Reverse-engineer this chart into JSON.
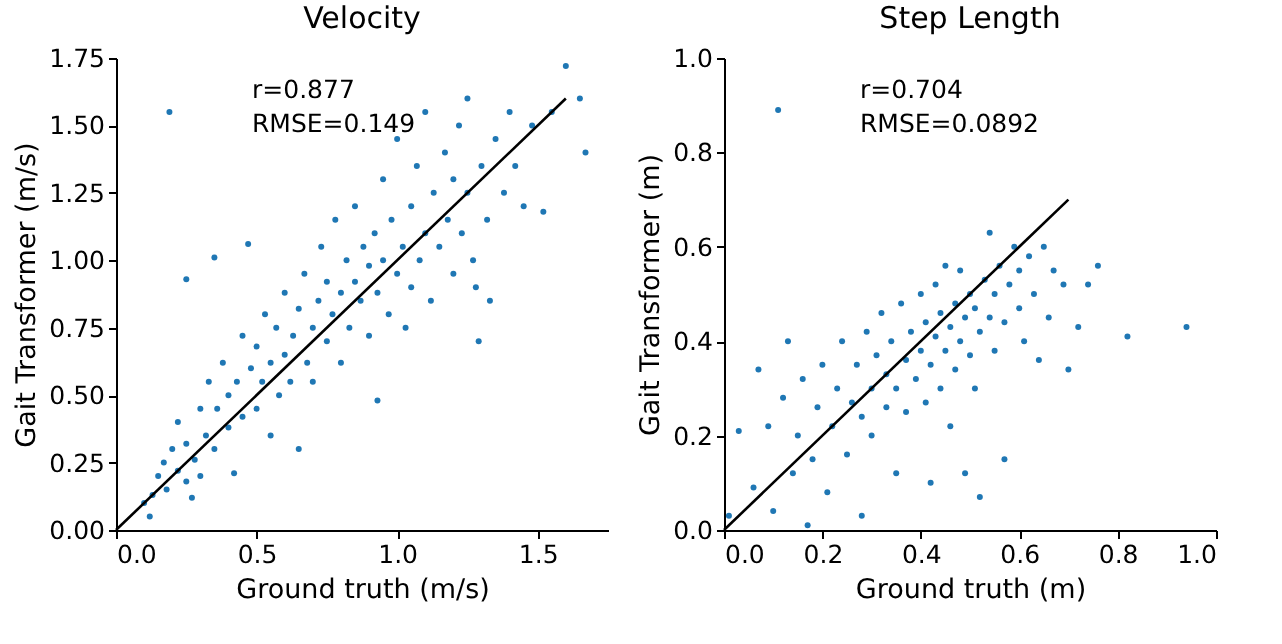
{
  "chart_data": [
    {
      "type": "scatter",
      "title": "Velocity",
      "xlabel": "Ground truth (m/s)",
      "ylabel": "Gait Transformer (m/s)",
      "xlim": [
        0,
        1.75
      ],
      "ylim": [
        0,
        1.75
      ],
      "xticks": [
        {
          "value": 0,
          "label": "0.0"
        },
        {
          "value": 0.5,
          "label": "0.5"
        },
        {
          "value": 1,
          "label": "1.0"
        },
        {
          "value": 1.5,
          "label": "1.5"
        }
      ],
      "yticks": [
        {
          "value": 0,
          "label": "0.00"
        },
        {
          "value": 0.25,
          "label": "0.25"
        },
        {
          "value": 0.5,
          "label": "0.50"
        },
        {
          "value": 0.75,
          "label": "0.75"
        },
        {
          "value": 1,
          "label": "1.00"
        },
        {
          "value": 1.25,
          "label": "1.25"
        },
        {
          "value": 1.5,
          "label": "1.50"
        },
        {
          "value": 1.75,
          "label": "1.75"
        }
      ],
      "grid": false,
      "annotations": [
        "r=0.877",
        "RMSE=0.149"
      ],
      "series": [
        {
          "marker": "circle",
          "color": "#1f77b4",
          "x": [
            0.12,
            0.1,
            0.13,
            0.15,
            0.17,
            0.18,
            0.2,
            0.22,
            0.22,
            0.25,
            0.25,
            0.27,
            0.28,
            0.3,
            0.3,
            0.32,
            0.33,
            0.35,
            0.36,
            0.38,
            0.4,
            0.4,
            0.42,
            0.43,
            0.45,
            0.45,
            0.48,
            0.5,
            0.5,
            0.52,
            0.53,
            0.55,
            0.55,
            0.57,
            0.58,
            0.6,
            0.6,
            0.62,
            0.63,
            0.65,
            0.65,
            0.67,
            0.68,
            0.7,
            0.7,
            0.72,
            0.73,
            0.75,
            0.75,
            0.77,
            0.78,
            0.8,
            0.8,
            0.82,
            0.83,
            0.85,
            0.85,
            0.87,
            0.88,
            0.9,
            0.9,
            0.92,
            0.93,
            0.95,
            0.95,
            0.97,
            0.98,
            1.0,
            1.0,
            1.02,
            1.03,
            1.05,
            1.05,
            1.07,
            1.08,
            1.1,
            1.1,
            1.12,
            1.13,
            1.15,
            1.17,
            1.18,
            1.2,
            1.2,
            1.22,
            1.23,
            1.25,
            1.25,
            1.27,
            1.28,
            1.3,
            1.32,
            1.35,
            1.38,
            1.4,
            1.42,
            1.45,
            1.48,
            1.52,
            1.55,
            0.19,
            1.6,
            1.67,
            1.65,
            1.29,
            0.93,
            0.35,
            0.25,
            0.47,
            1.33
          ],
          "values": [
            0.05,
            0.1,
            0.13,
            0.2,
            0.25,
            0.15,
            0.3,
            0.22,
            0.4,
            0.18,
            0.32,
            0.12,
            0.26,
            0.45,
            0.2,
            0.35,
            0.55,
            0.3,
            0.45,
            0.62,
            0.38,
            0.5,
            0.21,
            0.55,
            0.72,
            0.42,
            0.6,
            0.45,
            0.68,
            0.55,
            0.8,
            0.35,
            0.62,
            0.75,
            0.5,
            0.65,
            0.88,
            0.55,
            0.72,
            0.3,
            0.82,
            0.95,
            0.62,
            0.75,
            0.55,
            0.85,
            1.05,
            0.7,
            0.92,
            0.8,
            1.15,
            0.62,
            0.88,
            1.0,
            0.75,
            0.92,
            1.2,
            0.85,
            1.05,
            0.72,
            0.98,
            1.1,
            0.88,
            1.3,
            1.0,
            0.8,
            1.15,
            0.95,
            1.45,
            1.05,
            0.75,
            1.2,
            0.9,
            1.35,
            1.0,
            1.1,
            1.55,
            0.85,
            1.25,
            1.05,
            1.4,
            1.15,
            0.95,
            1.3,
            1.5,
            1.1,
            1.25,
            1.6,
            1.0,
            0.9,
            1.35,
            1.15,
            1.45,
            1.25,
            1.55,
            1.35,
            1.2,
            1.5,
            1.18,
            1.55,
            1.55,
            1.72,
            1.4,
            1.6,
            0.7,
            0.48,
            1.01,
            0.93,
            1.06,
            0.85
          ]
        },
        {
          "type": "line",
          "color": "#000000",
          "x": [
            0,
            1.6
          ],
          "values": [
            0,
            1.6
          ]
        }
      ]
    },
    {
      "type": "scatter",
      "title": "Step Length",
      "xlabel": "Ground truth (m)",
      "ylabel": "Gait Transformer (m)",
      "xlim": [
        0,
        1
      ],
      "ylim": [
        0,
        1
      ],
      "xticks": [
        {
          "value": 0,
          "label": "0.0"
        },
        0.2,
        0.4,
        0.6,
        0.8,
        {
          "value": 1,
          "label": "1.0"
        }
      ],
      "yticks": [
        {
          "value": 0,
          "label": "0.0"
        },
        0.2,
        0.4,
        0.6,
        0.8,
        {
          "value": 1,
          "label": "1.0"
        }
      ],
      "grid": false,
      "annotations": [
        "r=0.704",
        "RMSE=0.0892"
      ],
      "series": [
        {
          "marker": "circle",
          "color": "#1f77b4",
          "x": [
            0.01,
            0.03,
            0.06,
            0.07,
            0.09,
            0.1,
            0.11,
            0.12,
            0.13,
            0.14,
            0.15,
            0.16,
            0.17,
            0.18,
            0.19,
            0.2,
            0.21,
            0.22,
            0.23,
            0.24,
            0.25,
            0.26,
            0.27,
            0.28,
            0.28,
            0.29,
            0.3,
            0.3,
            0.31,
            0.32,
            0.33,
            0.33,
            0.34,
            0.35,
            0.35,
            0.36,
            0.37,
            0.37,
            0.38,
            0.39,
            0.4,
            0.4,
            0.41,
            0.41,
            0.42,
            0.42,
            0.43,
            0.43,
            0.44,
            0.44,
            0.45,
            0.45,
            0.46,
            0.46,
            0.47,
            0.47,
            0.48,
            0.48,
            0.49,
            0.5,
            0.5,
            0.51,
            0.51,
            0.52,
            0.52,
            0.53,
            0.54,
            0.54,
            0.55,
            0.55,
            0.56,
            0.57,
            0.58,
            0.59,
            0.6,
            0.6,
            0.61,
            0.62,
            0.63,
            0.64,
            0.65,
            0.66,
            0.67,
            0.69,
            0.7,
            0.72,
            0.74,
            0.76,
            0.82,
            0.94,
            0.57,
            0.49
          ],
          "values": [
            0.03,
            0.21,
            0.09,
            0.34,
            0.22,
            0.04,
            0.89,
            0.28,
            0.4,
            0.12,
            0.2,
            0.32,
            0.01,
            0.15,
            0.26,
            0.35,
            0.08,
            0.22,
            0.3,
            0.4,
            0.16,
            0.27,
            0.35,
            0.03,
            0.24,
            0.42,
            0.3,
            0.2,
            0.37,
            0.46,
            0.26,
            0.33,
            0.4,
            0.12,
            0.3,
            0.48,
            0.36,
            0.25,
            0.42,
            0.32,
            0.38,
            0.5,
            0.27,
            0.44,
            0.35,
            0.1,
            0.41,
            0.52,
            0.3,
            0.46,
            0.38,
            0.56,
            0.43,
            0.22,
            0.48,
            0.34,
            0.4,
            0.55,
            0.45,
            0.37,
            0.5,
            0.3,
            0.47,
            0.42,
            0.07,
            0.53,
            0.45,
            0.63,
            0.38,
            0.5,
            0.56,
            0.44,
            0.52,
            0.6,
            0.47,
            0.55,
            0.4,
            0.58,
            0.5,
            0.36,
            0.6,
            0.45,
            0.55,
            0.52,
            0.34,
            0.43,
            0.52,
            0.56,
            0.41,
            0.43,
            0.15,
            0.12
          ]
        },
        {
          "type": "line",
          "color": "#000000",
          "x": [
            0,
            0.7
          ],
          "values": [
            0,
            0.7
          ]
        }
      ]
    }
  ]
}
